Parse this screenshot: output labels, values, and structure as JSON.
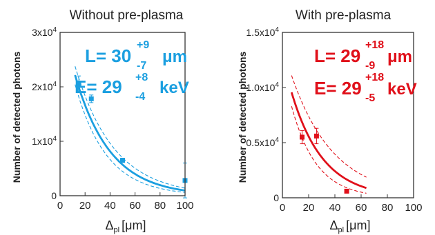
{
  "chart_data": [
    {
      "type": "scatter",
      "title": "Without pre-plasma",
      "xlabel": "Δpl [μm]",
      "xlabel_main": "Δ",
      "xlabel_sub": "pl",
      "xlabel_unit": "[μm]",
      "ylabel": "Number of detected photons",
      "xlim": [
        0,
        100
      ],
      "ylim": [
        0,
        30000
      ],
      "xticks": [
        "0",
        "20",
        "40",
        "60",
        "80",
        "100"
      ],
      "xtick_values": [
        0,
        20,
        40,
        60,
        80,
        100
      ],
      "yticks": [
        {
          "value": 0,
          "mant": "0",
          "exp": ""
        },
        {
          "value": 10000,
          "mant": "1x10",
          "exp": "4"
        },
        {
          "value": 20000,
          "mant": "2x10",
          "exp": "4"
        },
        {
          "value": 30000,
          "mant": "3x10",
          "exp": "4"
        }
      ],
      "color": "#1b9fe0",
      "points": [
        {
          "x": 15,
          "y": 20500,
          "err": 1500
        },
        {
          "x": 25,
          "y": 17800,
          "err": 700
        },
        {
          "x": 50,
          "y": 6500,
          "err": 400
        },
        {
          "x": 100,
          "y": 2800,
          "err": 3200
        }
      ],
      "fit": {
        "x_start": 12,
        "x_end": 100,
        "main": [
          34000,
          28
        ],
        "lower": [
          33000,
          25
        ],
        "upper": [
          35000,
          31
        ]
      },
      "annotation": {
        "L_label": "L= 30",
        "L_sup": "+9",
        "L_sub": "-7",
        "L_unit": "μm",
        "E_label": "E= 29",
        "E_sup": "+8",
        "E_sub": "-4",
        "E_unit": "keV"
      }
    },
    {
      "type": "scatter",
      "title": "With pre-plasma",
      "xlabel": "Δpl [μm]",
      "xlabel_main": "Δ",
      "xlabel_sub": "pl",
      "xlabel_unit": "[μm]",
      "ylabel": "Number of detected photons",
      "xlim": [
        0,
        100
      ],
      "ylim": [
        0,
        15000
      ],
      "xticks": [
        "0",
        "20",
        "40",
        "60",
        "80",
        "100"
      ],
      "xtick_values": [
        0,
        20,
        40,
        60,
        80,
        100
      ],
      "yticks": [
        {
          "value": 0,
          "mant": "0",
          "exp": ""
        },
        {
          "value": 5000,
          "mant": "0.5x10",
          "exp": "4"
        },
        {
          "value": 10000,
          "mant": "1.0x10",
          "exp": "4"
        },
        {
          "value": 15000,
          "mant": "1.5x10",
          "exp": "4"
        }
      ],
      "color": "#e0101a",
      "points": [
        {
          "x": 15,
          "y": 5500,
          "err": 600
        },
        {
          "x": 26,
          "y": 5600,
          "err": 700
        },
        {
          "x": 49,
          "y": 600,
          "err": 0
        }
      ],
      "fit": {
        "x_start": 7,
        "x_end": 64,
        "main": [
          12800,
          24
        ],
        "lower": [
          12000,
          19
        ],
        "upper": [
          13800,
          32
        ]
      },
      "annotation": {
        "L_label": "L= 29",
        "L_sup": "+18",
        "L_sub": "-9",
        "L_unit": "μm",
        "E_label": "E= 29",
        "E_sup": "+18",
        "E_sub": "-5",
        "E_unit": "keV"
      }
    }
  ]
}
